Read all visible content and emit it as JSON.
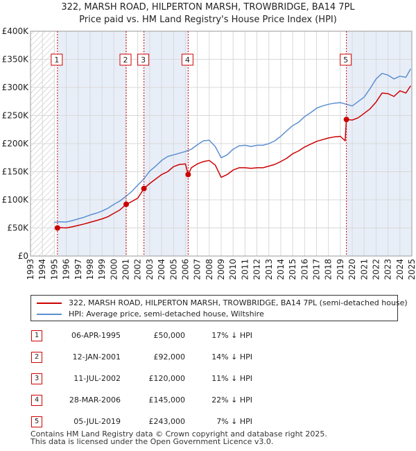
{
  "title_line1": "322, MARSH ROAD, HILPERTON MARSH, TROWBRIDGE, BA14 7PL",
  "title_line2": "Price paid vs. HM Land Registry's House Price Index (HPI)",
  "colors": {
    "price": "#cc0000",
    "hpi": "#5b8fd1",
    "shade": "#e8eef8",
    "grid": "#d8d8d8",
    "hatch": "#b8b8b8"
  },
  "legend": {
    "price_label": "322, MARSH ROAD, HILPERTON MARSH, TROWBRIDGE, BA14 7PL (semi-detached house)",
    "hpi_label": "HPI: Average price, semi-detached house, Wiltshire"
  },
  "sales": [
    {
      "num": "1",
      "date": "06-APR-1995",
      "price": "£50,000",
      "hpi": "17% ↓ HPI"
    },
    {
      "num": "2",
      "date": "12-JAN-2001",
      "price": "£92,000",
      "hpi": "14% ↓ HPI"
    },
    {
      "num": "3",
      "date": "11-JUL-2002",
      "price": "£120,000",
      "hpi": "11% ↓ HPI"
    },
    {
      "num": "4",
      "date": "28-MAR-2006",
      "price": "£145,000",
      "hpi": "22% ↓ HPI"
    },
    {
      "num": "5",
      "date": "05-JUL-2019",
      "price": "£243,000",
      "hpi": "7% ↓ HPI"
    }
  ],
  "footer_line1": "Contains HM Land Registry data © Crown copyright and database right 2025.",
  "footer_line2": "This data is licensed under the Open Government Licence v3.0.",
  "chart_data": {
    "type": "line",
    "title": "322, MARSH ROAD, HILPERTON MARSH, TROWBRIDGE, BA14 7PL — Price paid vs. HM Land Registry's House Price Index (HPI)",
    "xlabel": "",
    "ylabel": "",
    "xlim": [
      1993,
      2025
    ],
    "ylim": [
      0,
      400000
    ],
    "x_ticks": [
      1993,
      1994,
      1995,
      1996,
      1997,
      1998,
      1999,
      2000,
      2001,
      2002,
      2003,
      2004,
      2005,
      2006,
      2007,
      2008,
      2009,
      2010,
      2011,
      2012,
      2013,
      2014,
      2015,
      2016,
      2017,
      2018,
      2019,
      2020,
      2021,
      2022,
      2023,
      2024,
      2025
    ],
    "y_ticks": [
      {
        "value": 0,
        "label": "£0"
      },
      {
        "value": 50000,
        "label": "£50K"
      },
      {
        "value": 100000,
        "label": "£100K"
      },
      {
        "value": 150000,
        "label": "£150K"
      },
      {
        "value": 200000,
        "label": "£200K"
      },
      {
        "value": 250000,
        "label": "£250K"
      },
      {
        "value": 300000,
        "label": "£300K"
      },
      {
        "value": 350000,
        "label": "£350K"
      },
      {
        "value": 400000,
        "label": "£400K"
      }
    ],
    "grid": true,
    "hatched_before": 1995.0,
    "series": [
      {
        "name": "HPI: Average price, semi-detached house, Wiltshire",
        "x": [
          1995.0,
          1995.5,
          1996.0,
          1996.5,
          1997.0,
          1997.5,
          1998.0,
          1998.5,
          1999.0,
          1999.5,
          2000.0,
          2000.5,
          2001.0,
          2001.5,
          2002.0,
          2002.5,
          2003.0,
          2003.5,
          2004.0,
          2004.5,
          2005.0,
          2005.5,
          2006.0,
          2006.5,
          2007.0,
          2007.5,
          2008.0,
          2008.5,
          2009.0,
          2009.5,
          2010.0,
          2010.5,
          2011.0,
          2011.5,
          2012.0,
          2012.5,
          2013.0,
          2013.5,
          2014.0,
          2014.5,
          2015.0,
          2015.5,
          2016.0,
          2016.5,
          2017.0,
          2017.5,
          2018.0,
          2018.5,
          2019.0,
          2019.5,
          2020.0,
          2020.5,
          2021.0,
          2021.5,
          2022.0,
          2022.5,
          2023.0,
          2023.5,
          2024.0,
          2024.5,
          2024.9
        ],
        "values": [
          60000,
          61000,
          60500,
          63000,
          66000,
          69000,
          73000,
          76000,
          80000,
          85000,
          92000,
          98000,
          106000,
          115000,
          126000,
          137000,
          151000,
          160000,
          170000,
          177000,
          180000,
          183000,
          186000,
          190000,
          198000,
          205000,
          206000,
          195000,
          175000,
          180000,
          190000,
          196000,
          197000,
          195000,
          197000,
          197000,
          200000,
          205000,
          213000,
          223000,
          232000,
          238000,
          248000,
          255000,
          263000,
          267000,
          270000,
          272000,
          273000,
          270000,
          267000,
          275000,
          283000,
          298000,
          315000,
          325000,
          322000,
          315000,
          320000,
          318000,
          333000
        ]
      },
      {
        "name": "322, MARSH ROAD, HILPERTON MARSH, TROWBRIDGE, BA14 7PL (semi-detached house)",
        "x": [
          1995.26,
          1995.5,
          1996.0,
          1996.5,
          1997.0,
          1997.5,
          1998.0,
          1998.5,
          1999.0,
          1999.5,
          2000.0,
          2000.5,
          2001.03,
          2001.5,
          2002.0,
          2002.52,
          2003.0,
          2003.5,
          2004.0,
          2004.5,
          2005.0,
          2005.5,
          2006.0,
          2006.23,
          2006.5,
          2007.0,
          2007.5,
          2008.0,
          2008.5,
          2009.0,
          2009.5,
          2010.0,
          2010.5,
          2011.0,
          2011.5,
          2012.0,
          2012.5,
          2013.0,
          2013.5,
          2014.0,
          2014.5,
          2015.0,
          2015.5,
          2016.0,
          2016.5,
          2017.0,
          2017.5,
          2018.0,
          2018.5,
          2019.0,
          2019.4,
          2019.51,
          2020.0,
          2020.5,
          2021.0,
          2021.5,
          2022.0,
          2022.5,
          2023.0,
          2023.5,
          2024.0,
          2024.5,
          2024.9
        ],
        "values": [
          50000,
          50500,
          50000,
          52000,
          54500,
          57000,
          60000,
          63000,
          66000,
          70000,
          76000,
          82000,
          92000,
          97000,
          103000,
          120000,
          129000,
          137000,
          145000,
          150000,
          159000,
          163000,
          164000,
          145000,
          157000,
          164000,
          168000,
          170000,
          162000,
          140000,
          145000,
          153000,
          157000,
          157000,
          156000,
          157000,
          157000,
          160000,
          163000,
          168000,
          174000,
          182000,
          187000,
          194000,
          199000,
          204000,
          207000,
          210000,
          212000,
          213000,
          205000,
          243000,
          242000,
          246000,
          254000,
          262000,
          274000,
          290000,
          289000,
          284000,
          294000,
          290000,
          303000
        ]
      }
    ],
    "annotations": [
      {
        "label": "1",
        "x": 1995.26,
        "value": 50000
      },
      {
        "label": "2",
        "x": 2001.03,
        "value": 92000
      },
      {
        "label": "3",
        "x": 2002.52,
        "value": 120000
      },
      {
        "label": "4",
        "x": 2006.23,
        "value": 145000
      },
      {
        "label": "5",
        "x": 2019.51,
        "value": 243000
      }
    ]
  }
}
